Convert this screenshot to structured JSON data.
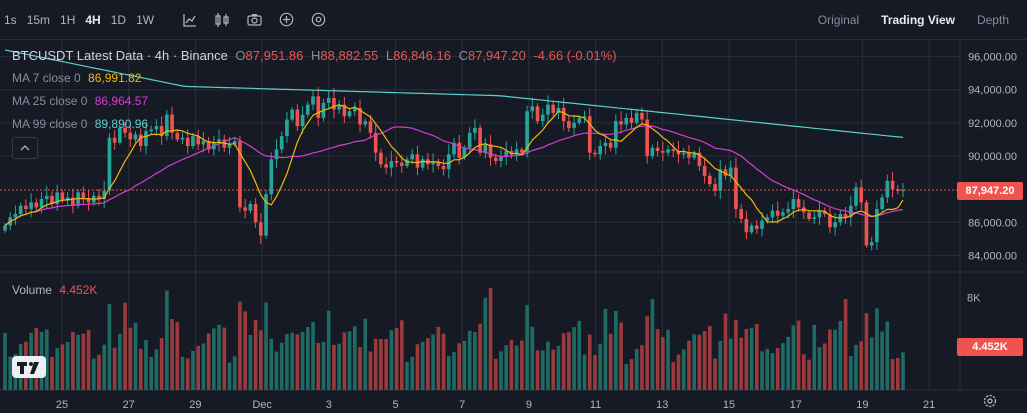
{
  "toolbar": {
    "timeframes": [
      {
        "label": "1s",
        "active": false
      },
      {
        "label": "15m",
        "active": false
      },
      {
        "label": "1H",
        "active": false
      },
      {
        "label": "4H",
        "active": true
      },
      {
        "label": "1D",
        "active": false
      },
      {
        "label": "1W",
        "active": false
      }
    ],
    "tools": [
      "indicator-chart-icon",
      "candlestick-type-icon",
      "camera-icon",
      "add-icon",
      "settings-icon"
    ],
    "views": [
      {
        "label": "Original",
        "active": false
      },
      {
        "label": "Trading View",
        "active": true
      },
      {
        "label": "Depth",
        "active": false
      }
    ]
  },
  "legend": {
    "symbol": "BTCUSDT Latest Data · 4h · Binance",
    "open_label": "O",
    "open": "87,951.86",
    "high_label": "H",
    "high": "88,882.55",
    "low_label": "L",
    "low": "86,846.16",
    "close_label": "C",
    "close": "87,947.20",
    "change": "-4.66 (-0.01%)",
    "ma7_label": "MA 7 close 0",
    "ma7_value": "86,991.82",
    "ma25_label": "MA 25 close 0",
    "ma25_value": "86,964.57",
    "ma99_label": "MA 99 close 0",
    "ma99_value": "89,890.96"
  },
  "volume_legend": {
    "label": "Volume",
    "value": "4.452K"
  },
  "price_axis": {
    "ticks": [
      "96,000.00",
      "94,000.00",
      "92,000.00",
      "90,000.00",
      "86,000.00",
      "84,000.00"
    ],
    "last_price": "87,947.20"
  },
  "volume_axis": {
    "ticks": [
      "8K"
    ],
    "last_volume": "4.452K"
  },
  "time_axis": {
    "ticks": [
      "25",
      "27",
      "29",
      "Dec",
      "3",
      "5",
      "7",
      "9",
      "11",
      "13",
      "15",
      "17",
      "19",
      "21"
    ]
  },
  "colors": {
    "up": "#26a69a",
    "down": "#ef5350",
    "ma7": "#f0b90b",
    "ma25": "#d63dd2",
    "ma99": "#5dcfcf",
    "background": "#161a25",
    "grid": "#2a2e39"
  },
  "chart_data": {
    "type": "candlestick",
    "symbol": "BTCUSDT",
    "interval": "4h",
    "x_range": [
      "Nov 24",
      "Dec 20"
    ],
    "ylim": [
      83000,
      97000
    ],
    "close_series": [
      85800,
      86300,
      86500,
      87000,
      86800,
      87200,
      86900,
      87400,
      87600,
      87100,
      87800,
      87300,
      87500,
      87000,
      87800,
      87400,
      87200,
      87600,
      87400,
      87900,
      91100,
      90800,
      91700,
      91400,
      91000,
      91300,
      90600,
      91500,
      91600,
      91800,
      91200,
      92500,
      91400,
      91000,
      91100,
      90600,
      91200,
      90700,
      90900,
      90400,
      90800,
      91000,
      90500,
      90700,
      90900,
      86900,
      86700,
      87100,
      86000,
      85200,
      87700,
      89800,
      90400,
      91200,
      92200,
      92800,
      91800,
      92500,
      93100,
      93600,
      92300,
      93200,
      93500,
      92800,
      93100,
      92400,
      92700,
      92900,
      91900,
      92100,
      91400,
      90200,
      89500,
      89300,
      89700,
      89600,
      89400,
      89800,
      90100,
      89300,
      89800,
      89500,
      89600,
      89400,
      89200,
      90100,
      90800,
      89900,
      90500,
      91400,
      91700,
      90200,
      90700,
      89900,
      89700,
      90000,
      90300,
      90100,
      90400,
      90200,
      92700,
      93000,
      92100,
      92500,
      93100,
      92600,
      92900,
      92100,
      91700,
      92000,
      92300,
      92400,
      90200,
      90100,
      90600,
      90800,
      90500,
      92100,
      91900,
      92300,
      92000,
      92600,
      92200,
      90000,
      90500,
      90300,
      90200,
      90400,
      90300,
      90100,
      90200,
      89900,
      90200,
      89400,
      88800,
      88300,
      87900,
      89200,
      88800,
      89300,
      86800,
      86200,
      85400,
      85800,
      85600,
      86100,
      86300,
      86700,
      86400,
      86600,
      86800,
      87400,
      86900,
      86600,
      86200,
      86300,
      86700,
      86500,
      85700,
      86000,
      86500,
      86300,
      87000,
      88100,
      87200,
      84600,
      84800,
      86800,
      87500,
      88500,
      88000,
      87900,
      87947
    ],
    "ma_series": [
      {
        "name": "MA 7",
        "last": 86991.82
      },
      {
        "name": "MA 25",
        "last": 86964.57
      },
      {
        "name": "MA 99",
        "last": 89890.96
      }
    ],
    "last_price": 87947.2,
    "volume": {
      "last": 4452,
      "ylim": [
        0,
        9500
      ]
    }
  }
}
